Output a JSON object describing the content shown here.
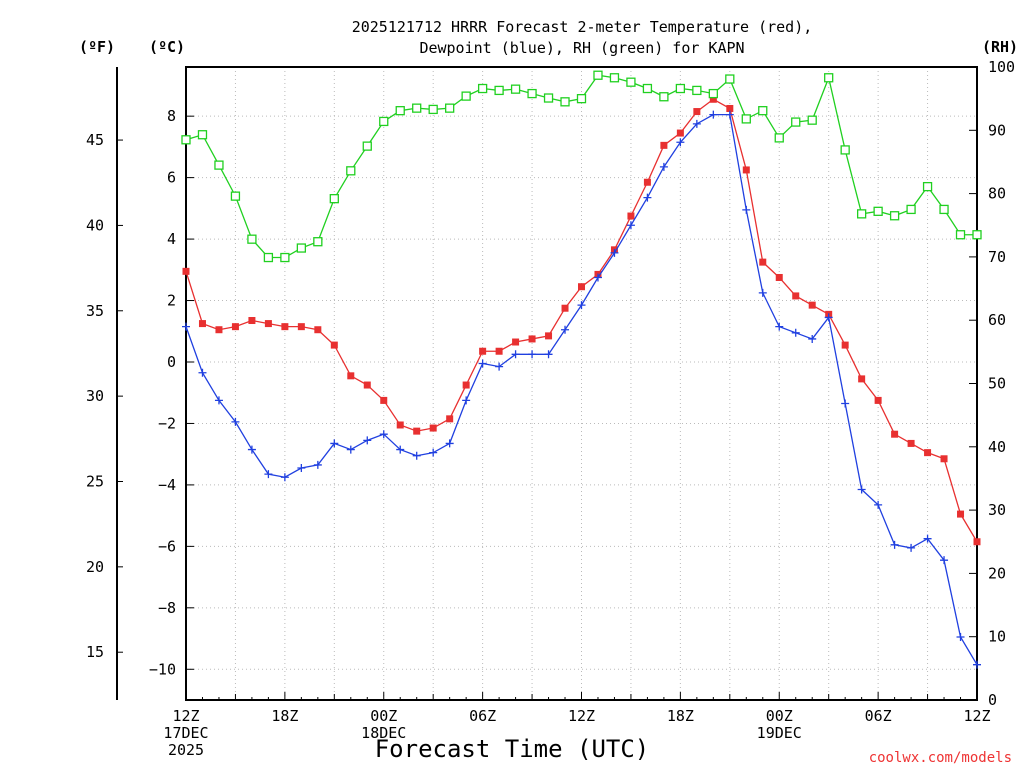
{
  "chart_data": {
    "type": "line",
    "title": [
      "2025121712 HRRR Forecast 2-meter Temperature (red),",
      "Dewpoint (blue), RH (green) for KAPN"
    ],
    "xlabel": "Forecast Time (UTC)",
    "credit": "coolwx.com/models",
    "units": {
      "fahrenheit": "(ºF)",
      "celsius": "(ºC)",
      "rh": "(RH)"
    },
    "x_ticks": [
      {
        "hour": 0,
        "lines": [
          "12Z",
          "17DEC",
          "2025"
        ]
      },
      {
        "hour": 6,
        "lines": [
          "18Z"
        ]
      },
      {
        "hour": 12,
        "lines": [
          "00Z",
          "18DEC"
        ]
      },
      {
        "hour": 18,
        "lines": [
          "06Z"
        ]
      },
      {
        "hour": 24,
        "lines": [
          "12Z"
        ]
      },
      {
        "hour": 30,
        "lines": [
          "18Z"
        ]
      },
      {
        "hour": 36,
        "lines": [
          "00Z",
          "19DEC"
        ]
      },
      {
        "hour": 42,
        "lines": [
          "06Z"
        ]
      },
      {
        "hour": 48,
        "lines": [
          "12Z"
        ]
      }
    ],
    "xlim": [
      0,
      48
    ],
    "ylim_celsius": [
      -11,
      9.6
    ],
    "y_ticks_celsius": [
      {
        "v": 8,
        "label": "8"
      },
      {
        "v": 6,
        "label": "6"
      },
      {
        "v": 4,
        "label": "4"
      },
      {
        "v": 2,
        "label": "2"
      },
      {
        "v": 0,
        "label": "0"
      },
      {
        "v": -2,
        "label": "−2"
      },
      {
        "v": -4,
        "label": "−4"
      },
      {
        "v": -6,
        "label": "−6"
      },
      {
        "v": -8,
        "label": "−8"
      },
      {
        "v": -10,
        "label": "−10"
      }
    ],
    "y_ticks_fahrenheit": [
      {
        "v": 45,
        "label": "45"
      },
      {
        "v": 40,
        "label": "40"
      },
      {
        "v": 35,
        "label": "35"
      },
      {
        "v": 30,
        "label": "30"
      },
      {
        "v": 25,
        "label": "25"
      },
      {
        "v": 20,
        "label": "20"
      },
      {
        "v": 15,
        "label": "15"
      }
    ],
    "ylim_rh": [
      0,
      100
    ],
    "y_ticks_rh": [
      {
        "v": 100,
        "label": "100"
      },
      {
        "v": 90,
        "label": "90"
      },
      {
        "v": 80,
        "label": "80"
      },
      {
        "v": 70,
        "label": "70"
      },
      {
        "v": 60,
        "label": "60"
      },
      {
        "v": 50,
        "label": "50"
      },
      {
        "v": 40,
        "label": "40"
      },
      {
        "v": 30,
        "label": "30"
      },
      {
        "v": 20,
        "label": "20"
      },
      {
        "v": 10,
        "label": "10"
      },
      {
        "v": 0,
        "label": "0"
      }
    ],
    "forecast_hours": [
      0,
      1,
      2,
      3,
      4,
      5,
      6,
      7,
      8,
      9,
      10,
      11,
      12,
      13,
      14,
      15,
      16,
      17,
      18,
      19,
      20,
      21,
      22,
      23,
      24,
      25,
      26,
      27,
      28,
      29,
      30,
      31,
      32,
      33,
      34,
      35,
      36,
      37,
      38,
      39,
      40,
      41,
      42,
      43,
      44,
      45,
      46,
      47,
      48
    ],
    "series": [
      {
        "name": "Temperature",
        "units": "degC",
        "color": "#e83030",
        "marker": "filled-square",
        "values": [
          2.95,
          1.25,
          1.05,
          1.15,
          1.35,
          1.25,
          1.15,
          1.15,
          1.05,
          0.55,
          -0.45,
          -0.75,
          -1.25,
          -2.05,
          -2.25,
          -2.15,
          -1.85,
          -0.75,
          0.35,
          0.35,
          0.65,
          0.75,
          0.85,
          1.75,
          2.45,
          2.85,
          3.65,
          4.75,
          5.85,
          7.05,
          7.45,
          8.15,
          8.55,
          8.25,
          6.25,
          3.25,
          2.75,
          2.15,
          1.85,
          1.55,
          0.55,
          -0.55,
          -1.25,
          -2.35,
          -2.65,
          -2.95,
          -3.15,
          -4.95,
          -5.85
        ]
      },
      {
        "name": "Dewpoint",
        "units": "degC",
        "color": "#2040e0",
        "marker": "plus",
        "values": [
          1.15,
          -0.35,
          -1.25,
          -1.95,
          -2.85,
          -3.65,
          -3.75,
          -3.45,
          -3.35,
          -2.65,
          -2.85,
          -2.55,
          -2.35,
          -2.85,
          -3.05,
          -2.95,
          -2.65,
          -1.25,
          -0.05,
          -0.15,
          0.25,
          0.25,
          0.25,
          1.05,
          1.85,
          2.75,
          3.55,
          4.45,
          5.35,
          6.35,
          7.15,
          7.75,
          8.05,
          8.05,
          4.95,
          2.25,
          1.15,
          0.95,
          0.75,
          1.45,
          -1.35,
          -4.15,
          -4.65,
          -5.95,
          -6.05,
          -5.75,
          -6.45,
          -8.95,
          -9.85
        ]
      },
      {
        "name": "Relative Humidity",
        "units": "%",
        "color": "#20d020",
        "marker": "open-square",
        "values": [
          88.5,
          89.3,
          84.5,
          79.6,
          72.8,
          69.9,
          69.9,
          71.4,
          72.4,
          79.2,
          83.6,
          87.5,
          91.4,
          93.1,
          93.5,
          93.3,
          93.5,
          95.4,
          96.6,
          96.3,
          96.5,
          95.8,
          95.1,
          94.5,
          95.0,
          98.7,
          98.3,
          97.6,
          96.6,
          95.3,
          96.6,
          96.3,
          95.8,
          98.1,
          91.8,
          93.1,
          88.8,
          91.3,
          91.6,
          98.3,
          86.9,
          76.8,
          77.2,
          76.5,
          77.5,
          81.1,
          77.5,
          73.5,
          73.5
        ]
      }
    ]
  }
}
